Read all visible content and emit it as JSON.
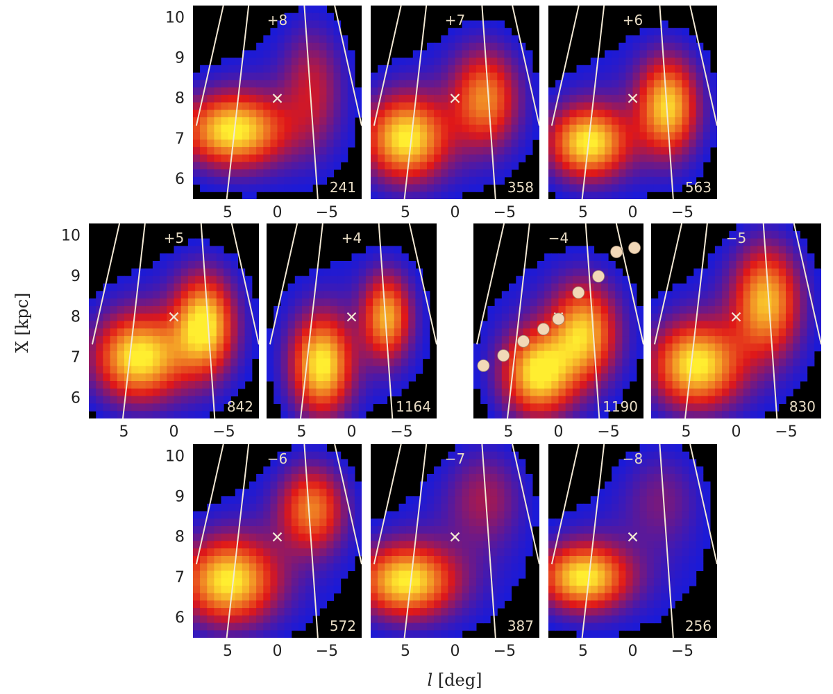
{
  "chart_data": {
    "type": "heatmap",
    "xlabel_italic": "l",
    "xlabel_rest": " [deg]",
    "ylabel": "X [kpc]",
    "x_ticks": [
      5,
      0,
      -5
    ],
    "x_tick_labels": [
      "5",
      "0",
      "−5"
    ],
    "y_ticks": [
      6,
      7,
      8,
      9,
      10
    ],
    "y_tick_labels": [
      "6",
      "7",
      "8",
      "9",
      "10"
    ],
    "xlim": [
      8.5,
      -8.5
    ],
    "ylim": [
      5.5,
      10.3
    ],
    "colors": {
      "background": "#000000",
      "low": "#1a1ad8",
      "mid": "#e01818",
      "high": "#ffee30",
      "line": "#f2e8d4",
      "marker": "#f2e8d4",
      "dot": "#f2d8b8"
    },
    "cross_marker": {
      "l": 0,
      "X": 8.0
    },
    "panels": [
      {
        "label": "+8",
        "count": "241",
        "blobs": [
          {
            "l": 4.5,
            "X": 7.2,
            "sl": 3.5,
            "sx": 0.6,
            "a": 1.0
          },
          {
            "l": -3.5,
            "X": 8.3,
            "sl": 2.0,
            "sx": 1.0,
            "a": 0.35
          }
        ]
      },
      {
        "label": "+7",
        "count": "358",
        "blobs": [
          {
            "l": 5.0,
            "X": 7.0,
            "sl": 2.8,
            "sx": 0.7,
            "a": 1.0
          },
          {
            "l": -3.0,
            "X": 8.0,
            "sl": 2.2,
            "sx": 0.8,
            "a": 0.7
          }
        ]
      },
      {
        "label": "+6",
        "count": "563",
        "blobs": [
          {
            "l": 4.5,
            "X": 6.9,
            "sl": 2.7,
            "sx": 0.6,
            "a": 1.0
          },
          {
            "l": -3.5,
            "X": 7.8,
            "sl": 2.0,
            "sx": 0.8,
            "a": 0.9
          }
        ]
      },
      {
        "label": "+5",
        "count": "842",
        "blobs": [
          {
            "l": 3.5,
            "X": 7.0,
            "sl": 3.0,
            "sx": 0.7,
            "a": 1.0
          },
          {
            "l": -3.0,
            "X": 7.8,
            "sl": 2.0,
            "sx": 0.8,
            "a": 1.0
          }
        ]
      },
      {
        "label": "+4",
        "count": "1164",
        "blobs": [
          {
            "l": 3.0,
            "X": 6.8,
            "sl": 2.0,
            "sx": 0.8,
            "a": 1.0
          },
          {
            "l": -3.5,
            "X": 8.0,
            "sl": 1.6,
            "sx": 0.7,
            "a": 0.8
          }
        ]
      },
      {
        "label": "−4",
        "count": "1190",
        "blobs": [
          {
            "l": 2.0,
            "X": 6.6,
            "sl": 2.4,
            "sx": 0.7,
            "a": 1.0
          },
          {
            "l": -2.5,
            "X": 7.6,
            "sl": 2.2,
            "sx": 0.8,
            "a": 0.85
          }
        ]
      },
      {
        "label": "−5",
        "count": "830",
        "blobs": [
          {
            "l": 4.0,
            "X": 6.8,
            "sl": 3.0,
            "sx": 0.7,
            "a": 1.0
          },
          {
            "l": -3.0,
            "X": 8.4,
            "sl": 2.2,
            "sx": 0.9,
            "a": 0.85
          }
        ]
      },
      {
        "label": "−6",
        "count": "572",
        "blobs": [
          {
            "l": 5.0,
            "X": 6.9,
            "sl": 3.2,
            "sx": 0.7,
            "a": 1.0
          },
          {
            "l": -3.5,
            "X": 8.7,
            "sl": 2.2,
            "sx": 0.7,
            "a": 0.7
          }
        ]
      },
      {
        "label": "−7",
        "count": "387",
        "blobs": [
          {
            "l": 5.0,
            "X": 6.9,
            "sl": 3.3,
            "sx": 0.6,
            "a": 1.0
          },
          {
            "l": -3.0,
            "X": 9.0,
            "sl": 2.5,
            "sx": 0.8,
            "a": 0.3
          }
        ]
      },
      {
        "label": "−8",
        "count": "256",
        "blobs": [
          {
            "l": 5.0,
            "X": 7.0,
            "sl": 3.0,
            "sx": 0.55,
            "a": 1.0
          },
          {
            "l": -3.0,
            "X": 9.0,
            "sl": 2.5,
            "sx": 0.8,
            "a": 0.2
          }
        ]
      }
    ],
    "dots_panel": "−4",
    "dots": [
      {
        "l": 7.5,
        "X": 6.8
      },
      {
        "l": 5.5,
        "X": 7.05
      },
      {
        "l": 3.5,
        "X": 7.4
      },
      {
        "l": 1.5,
        "X": 7.7
      },
      {
        "l": 0.0,
        "X": 7.95
      },
      {
        "l": -2.0,
        "X": 8.6
      },
      {
        "l": -4.0,
        "X": 9.0
      },
      {
        "l": -5.8,
        "X": 9.6
      },
      {
        "l": -7.6,
        "X": 9.7
      }
    ]
  }
}
